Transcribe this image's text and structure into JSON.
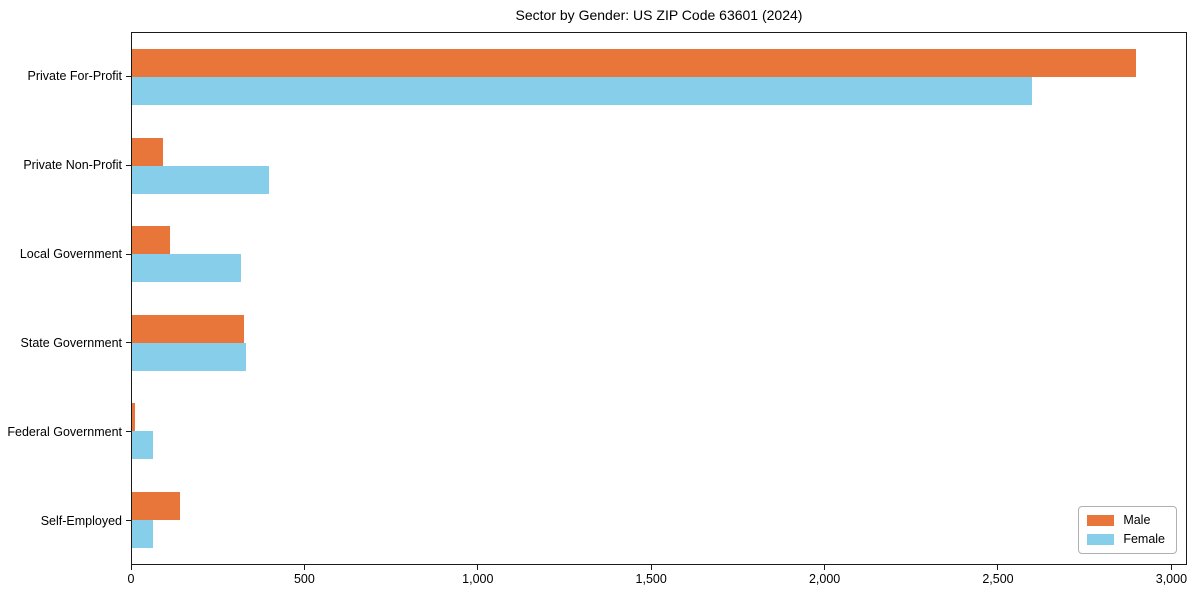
{
  "figure": {
    "background": "#ffffff",
    "plot_border_color": "#1a1a1a"
  },
  "chart_data": {
    "type": "bar",
    "orientation": "horizontal",
    "title": "Sector by Gender: US ZIP Code 63601 (2024)",
    "categories": [
      "Private For-Profit",
      "Private Non-Profit",
      "Local Government",
      "State Government",
      "Federal Government",
      "Self-Employed"
    ],
    "series": [
      {
        "name": "Male",
        "color": "#e8763a",
        "values": [
          2900,
          90,
          110,
          325,
          8,
          140
        ]
      },
      {
        "name": "Female",
        "color": "#87ceeb",
        "values": [
          2600,
          395,
          315,
          330,
          60,
          60
        ]
      }
    ],
    "xlabel": "",
    "ylabel": "",
    "xlim": [
      0,
      3045
    ],
    "x_ticks": [
      {
        "value": 0,
        "label": "0"
      },
      {
        "value": 500,
        "label": "500"
      },
      {
        "value": 1000,
        "label": "1,000"
      },
      {
        "value": 1500,
        "label": "1,500"
      },
      {
        "value": 2000,
        "label": "2,000"
      },
      {
        "value": 2500,
        "label": "2,500"
      },
      {
        "value": 3000,
        "label": "3,000"
      }
    ],
    "grid": false,
    "legend": {
      "position": "lower right",
      "labels": [
        "Male",
        "Female"
      ]
    }
  }
}
